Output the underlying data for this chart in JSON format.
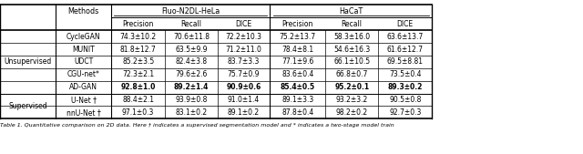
{
  "title_caption": "Table 1. Quantitative comparison on 2D data. Here † indicates a supervised segmentation model and * indicates a two-stage model train",
  "row_groups": [
    {
      "group_label": "Unsupervised",
      "rows": [
        {
          "method": "CycleGAN",
          "bold": false,
          "values": [
            "74.3±10.2",
            "70.6±11.8",
            "72.2±10.3",
            "75.2±13.7",
            "58.3±16.0",
            "63.6±13.7"
          ]
        },
        {
          "method": "MUNIT",
          "bold": false,
          "values": [
            "81.8±12.7",
            "63.5±9.9",
            "71.2±11.0",
            "78.4±8.1",
            "54.6±16.3",
            "61.6±12.7"
          ]
        },
        {
          "method": "UDCT",
          "bold": false,
          "values": [
            "85.2±3.5",
            "82.4±3.8",
            "83.7±3.3",
            "77.1±9.6",
            "66.1±10.5",
            "69.5±8.81"
          ]
        },
        {
          "method": "CGU-net*",
          "bold": false,
          "values": [
            "72.3±2.1",
            "79.6±2.6",
            "75.7±0.9",
            "83.6±0.4",
            "66.8±0.7",
            "73.5±0.4"
          ]
        },
        {
          "method": "AD-GAN",
          "bold": true,
          "values": [
            "92.8±1.0",
            "89.2±1.4",
            "90.9±0.6",
            "85.4±0.5",
            "95.2±0.1",
            "89.3±0.2"
          ]
        }
      ]
    },
    {
      "group_label": "Supervised",
      "rows": [
        {
          "method": "U-Net †",
          "bold": false,
          "values": [
            "88.4±2.1",
            "93.9±0.8",
            "91.0±1.4",
            "89.1±3.3",
            "93.2±3.2",
            "90.5±0.8"
          ]
        },
        {
          "method": "nnU-Net †",
          "bold": false,
          "values": [
            "97.1±0.3",
            "83.1±0.2",
            "89.1±0.2",
            "87.8±0.4",
            "98.2±0.2",
            "92.7±0.3"
          ]
        }
      ]
    }
  ],
  "background_color": "#ffffff"
}
